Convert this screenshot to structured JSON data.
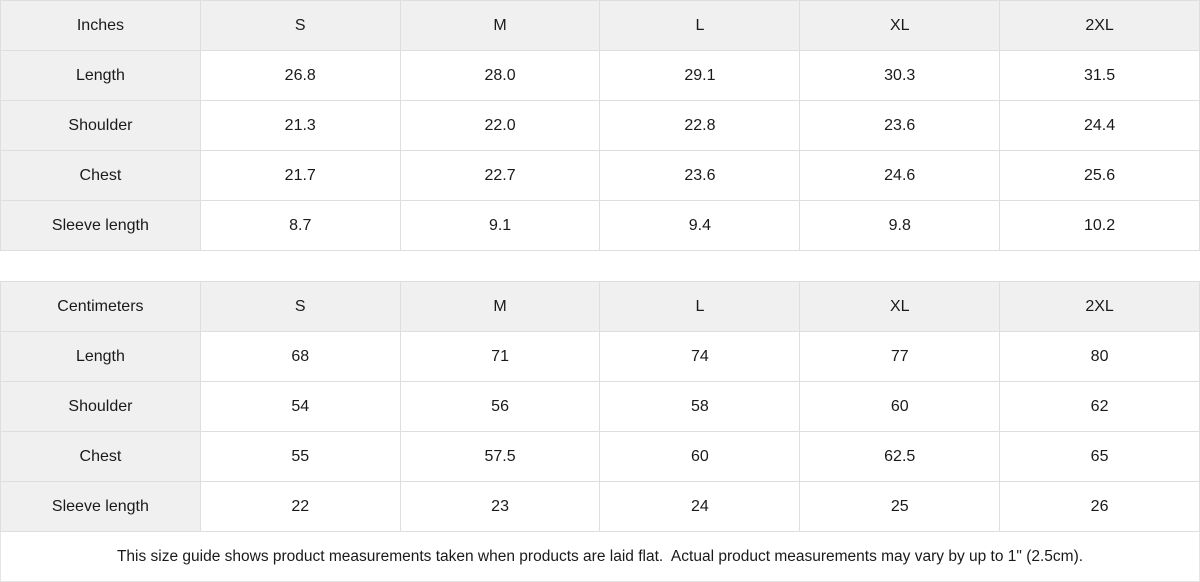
{
  "colors": {
    "header_bg": "#f0f0f0",
    "label_column_bg": "#f0f0f0",
    "cell_bg": "#ffffff",
    "border": "#dedede",
    "text": "#1a1a1a"
  },
  "tables": [
    {
      "unit_label": "Inches",
      "sizes": [
        "S",
        "M",
        "L",
        "XL",
        "2XL"
      ],
      "rows": [
        {
          "label": "Length",
          "values": [
            "26.8",
            "28.0",
            "29.1",
            "30.3",
            "31.5"
          ]
        },
        {
          "label": "Shoulder",
          "values": [
            "21.3",
            "22.0",
            "22.8",
            "23.6",
            "24.4"
          ]
        },
        {
          "label": "Chest",
          "values": [
            "21.7",
            "22.7",
            "23.6",
            "24.6",
            "25.6"
          ]
        },
        {
          "label": "Sleeve length",
          "values": [
            "8.7",
            "9.1",
            "9.4",
            "9.8",
            "10.2"
          ]
        }
      ]
    },
    {
      "unit_label": "Centimeters",
      "sizes": [
        "S",
        "M",
        "L",
        "XL",
        "2XL"
      ],
      "rows": [
        {
          "label": "Length",
          "values": [
            "68",
            "71",
            "74",
            "77",
            "80"
          ]
        },
        {
          "label": "Shoulder",
          "values": [
            "54",
            "56",
            "58",
            "60",
            "62"
          ]
        },
        {
          "label": "Chest",
          "values": [
            "55",
            "57.5",
            "60",
            "62.5",
            "65"
          ]
        },
        {
          "label": "Sleeve length",
          "values": [
            "22",
            "23",
            "24",
            "25",
            "26"
          ]
        }
      ]
    }
  ],
  "footer_note": "This size guide shows product measurements taken when products are laid flat.  Actual product measurements may vary by up to 1\" (2.5cm)."
}
